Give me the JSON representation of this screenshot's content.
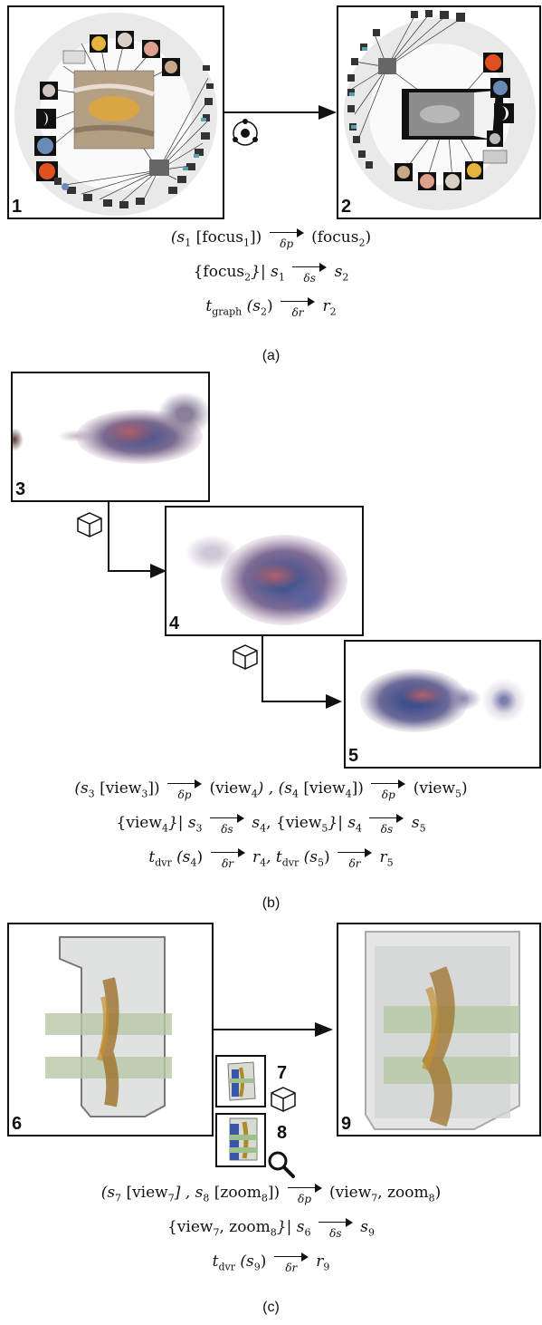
{
  "panel_a": {
    "labels": [
      "1",
      "2"
    ],
    "eq1": {
      "lhs": "(s",
      "sub1": "1",
      "mid": " [focus",
      "sub2": "1",
      "end": "])",
      "arrow": "δp",
      "rhs": "(focus",
      "rsub": "2",
      "rend": ")"
    },
    "eq2": {
      "lhs": "{focus",
      "sub1": "2",
      "mid": "}| s",
      "sub2": "1",
      "arrow": "δs",
      "rhs": "s",
      "rsub": "2"
    },
    "eq3": {
      "lhs": "t",
      "sub1": "graph",
      "mid": " (s",
      "sub2": "2",
      "end": ")",
      "arrow": "δr",
      "rhs": "r",
      "rsub": "2"
    },
    "caption": "(a)"
  },
  "panel_b": {
    "labels": [
      "3",
      "4",
      "5"
    ],
    "eq1": "(s3 [view3]) →δp (view4) , (s4 [view4]) →δp (view5)",
    "eq1_parts": {
      "a": "(s",
      "a1": "3",
      "b": " [view",
      "b1": "3",
      "c": "])",
      "arr1": "δp",
      "d": "(view",
      "d1": "4",
      "e": ") , (s",
      "e1": "4",
      "f": " [view",
      "f1": "4",
      "g": "])",
      "arr2": "δp",
      "h": "(view",
      "h1": "5",
      "i": ")"
    },
    "eq2_parts": {
      "a": "{view",
      "a1": "4",
      "b": "}| s",
      "b1": "3",
      "arr1": "δs",
      "c": "s",
      "c1": "4",
      "d": ", {view",
      "d1": "5",
      "e": "}| s",
      "e1": "4",
      "arr2": "δs",
      "f": "s",
      "f1": "5"
    },
    "eq3_parts": {
      "a": "t",
      "a1": "dvr",
      "b": " (s",
      "b1": "4",
      "c": ")",
      "arr1": "δr",
      "d": "r",
      "d1": "4",
      "e": ", t",
      "e1": "dvr",
      "f": " (s",
      "f1": "5",
      "g": ")",
      "arr2": "δr",
      "h": "r",
      "h1": "5"
    },
    "caption": "(b)"
  },
  "panel_c": {
    "labels": [
      "6",
      "7",
      "8",
      "9"
    ],
    "eq1_parts": {
      "a": "(s",
      "a1": "7",
      "b": " [view",
      "b1": "7",
      "c": "] , s",
      "c1": "8",
      "d": " [zoom",
      "d1": "8",
      "e": "])",
      "arr1": "δp",
      "f": "(view",
      "f1": "7",
      "g": ", zoom",
      "g1": "8",
      "h": ")"
    },
    "eq2_parts": {
      "a": "{view",
      "a1": "7",
      "b": ", zoom",
      "b1": "8",
      "c": "}| s",
      "c1": "6",
      "arr1": "δs",
      "d": "s",
      "d1": "9"
    },
    "eq3_parts": {
      "a": "t",
      "a1": "dvr",
      "b": " (s",
      "b1": "9",
      "c": ")",
      "arr1": "δr",
      "d": "r",
      "d1": "9"
    },
    "caption": "(c)"
  },
  "colors": {
    "frame": "#111111",
    "arrow": "#111111",
    "background": "#ffffff"
  },
  "icons": [
    "graph-node-icon",
    "cube-icon",
    "magnifier-icon"
  ]
}
